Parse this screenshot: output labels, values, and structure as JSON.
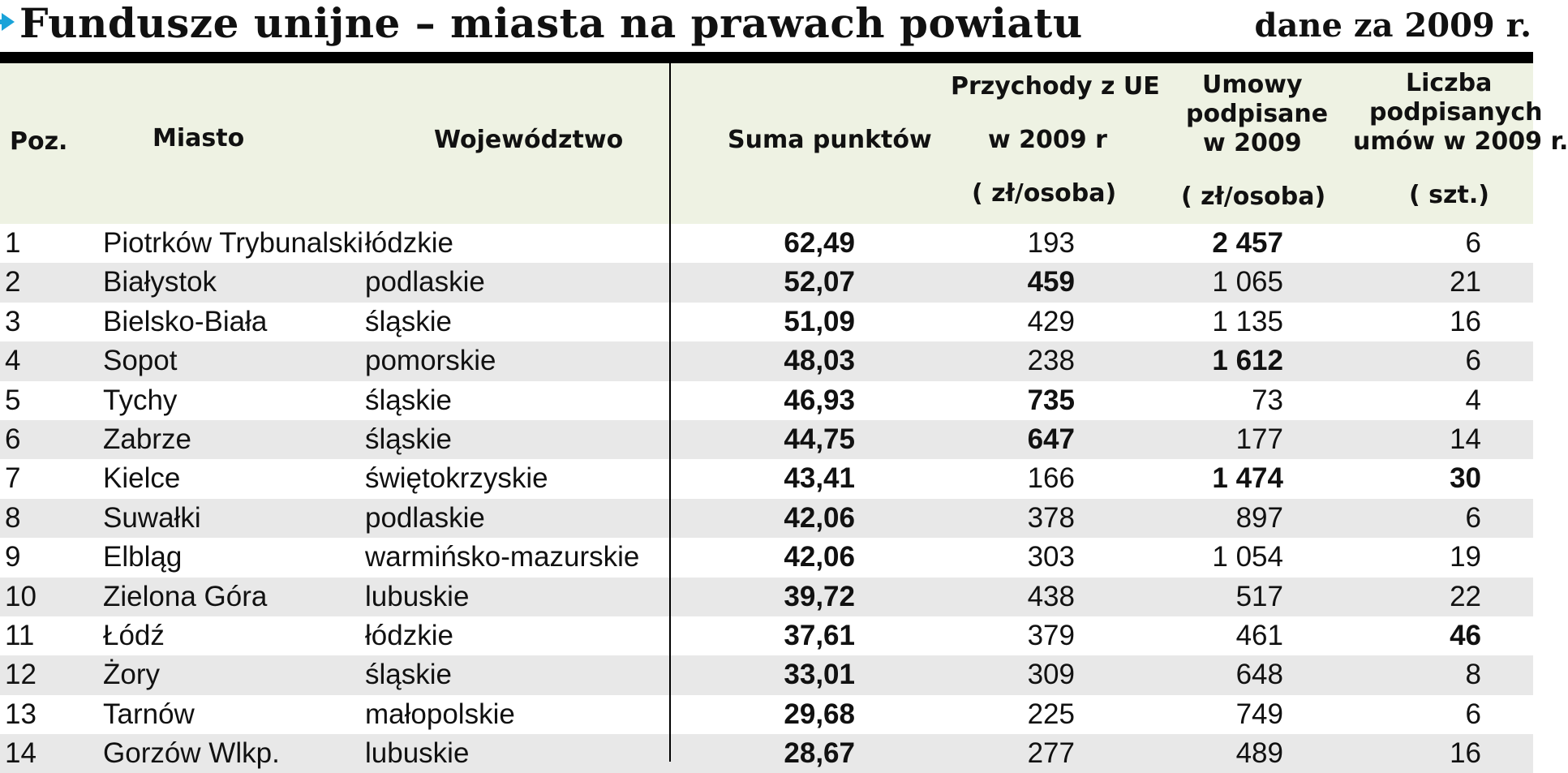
{
  "header": {
    "title": "Fundusze unijne – miasta na prawach powiatu",
    "date_note": "dane za 2009 r."
  },
  "columns": {
    "poz": "Poz.",
    "miasto": "Miasto",
    "wojewodztwo": "Województwo",
    "suma": "Suma punktów",
    "przychody_line1": "Przychody z UE",
    "przychody_line2": "w 2009 r",
    "przychody_unit": "( zł/osoba)",
    "umowy_line1": "Umowy",
    "umowy_line2": "podpisane",
    "umowy_line3": "w 2009",
    "umowy_unit": "( zł/osoba)",
    "liczba_line1": "Liczba",
    "liczba_line2": "podpisanych",
    "liczba_line3": "umów  w 2009 r.",
    "liczba_unit": "( szt.)"
  },
  "rows": [
    {
      "poz": "1",
      "miasto": "Piotrków Trybunalski",
      "wojewodztwo": "łódzkie",
      "suma": "62,49",
      "przychody": "193",
      "umowy": "2 457",
      "liczba": "6",
      "bold_przychody": false,
      "bold_umowy": true,
      "bold_liczba": false
    },
    {
      "poz": "2",
      "miasto": "Białystok",
      "wojewodztwo": "podlaskie",
      "suma": "52,07",
      "przychody": "459",
      "umowy": "1 065",
      "liczba": "21",
      "bold_przychody": true,
      "bold_umowy": false,
      "bold_liczba": false
    },
    {
      "poz": "3",
      "miasto": "Bielsko-Biała",
      "wojewodztwo": "śląskie",
      "suma": "51,09",
      "przychody": "429",
      "umowy": "1 135",
      "liczba": "16",
      "bold_przychody": false,
      "bold_umowy": false,
      "bold_liczba": false
    },
    {
      "poz": "4",
      "miasto": "Sopot",
      "wojewodztwo": "pomorskie",
      "suma": "48,03",
      "przychody": "238",
      "umowy": "1 612",
      "liczba": "6",
      "bold_przychody": false,
      "bold_umowy": true,
      "bold_liczba": false
    },
    {
      "poz": "5",
      "miasto": "Tychy",
      "wojewodztwo": "śląskie",
      "suma": "46,93",
      "przychody": "735",
      "umowy": "73",
      "liczba": "4",
      "bold_przychody": true,
      "bold_umowy": false,
      "bold_liczba": false
    },
    {
      "poz": "6",
      "miasto": "Zabrze",
      "wojewodztwo": "śląskie",
      "suma": "44,75",
      "przychody": "647",
      "umowy": "177",
      "liczba": "14",
      "bold_przychody": true,
      "bold_umowy": false,
      "bold_liczba": false
    },
    {
      "poz": "7",
      "miasto": "Kielce",
      "wojewodztwo": "świętokrzyskie",
      "suma": "43,41",
      "przychody": "166",
      "umowy": "1 474",
      "liczba": "30",
      "bold_przychody": false,
      "bold_umowy": true,
      "bold_liczba": true
    },
    {
      "poz": "8",
      "miasto": "Suwałki",
      "wojewodztwo": "podlaskie",
      "suma": "42,06",
      "przychody": "378",
      "umowy": "897",
      "liczba": "6",
      "bold_przychody": false,
      "bold_umowy": false,
      "bold_liczba": false
    },
    {
      "poz": "9",
      "miasto": "Elbląg",
      "wojewodztwo": "warmińsko-mazurskie",
      "suma": "42,06",
      "przychody": "303",
      "umowy": "1 054",
      "liczba": "19",
      "bold_przychody": false,
      "bold_umowy": false,
      "bold_liczba": false
    },
    {
      "poz": "10",
      "miasto": "Zielona Góra",
      "wojewodztwo": "lubuskie",
      "suma": "39,72",
      "przychody": "438",
      "umowy": "517",
      "liczba": "22",
      "bold_przychody": false,
      "bold_umowy": false,
      "bold_liczba": false
    },
    {
      "poz": "11",
      "miasto": "Łódź",
      "wojewodztwo": "łódzkie",
      "suma": "37,61",
      "przychody": "379",
      "umowy": "461",
      "liczba": "46",
      "bold_przychody": false,
      "bold_umowy": false,
      "bold_liczba": true
    },
    {
      "poz": "12",
      "miasto": "Żory",
      "wojewodztwo": "śląskie",
      "suma": "33,01",
      "przychody": "309",
      "umowy": "648",
      "liczba": "8",
      "bold_przychody": false,
      "bold_umowy": false,
      "bold_liczba": false
    },
    {
      "poz": "13",
      "miasto": "Tarnów",
      "wojewodztwo": "małopolskie",
      "suma": "29,68",
      "przychody": "225",
      "umowy": "749",
      "liczba": "6",
      "bold_przychody": false,
      "bold_umowy": false,
      "bold_liczba": false
    },
    {
      "poz": "14",
      "miasto": "Gorzów Wlkp.",
      "wojewodztwo": "lubuskie",
      "suma": "28,67",
      "przychody": "277",
      "umowy": "489",
      "liczba": "16",
      "bold_przychody": false,
      "bold_umowy": false,
      "bold_liczba": false
    }
  ],
  "colors": {
    "accent_arrow": "#1aa3d9",
    "header_bg": "#eef2e3",
    "row_alt_bg": "#e8e8e8"
  },
  "icons": {
    "title_marker": "arrow-right-icon"
  }
}
